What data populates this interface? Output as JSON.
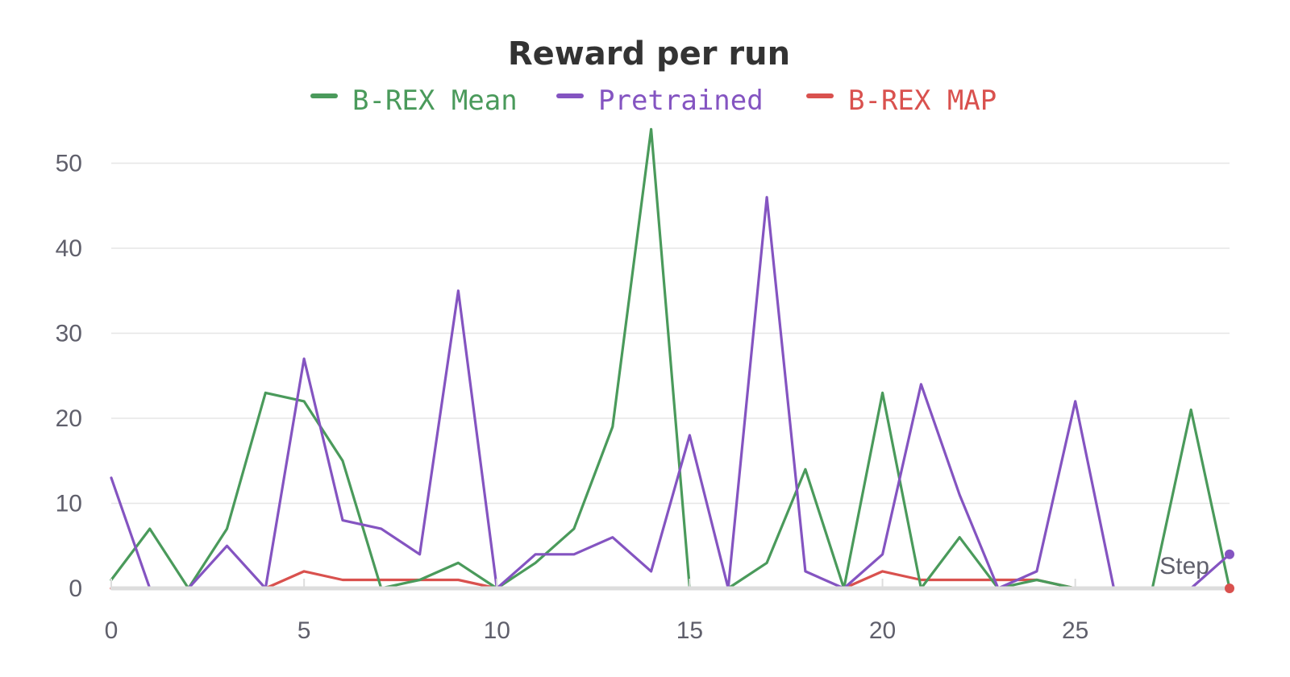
{
  "chart_data": {
    "type": "line",
    "title": "Reward per run",
    "xlabel": "Step",
    "ylabel": "",
    "xlim": [
      0,
      29
    ],
    "ylim": [
      0,
      55
    ],
    "x_ticks": [
      0,
      5,
      10,
      15,
      20,
      25
    ],
    "y_ticks": [
      0,
      10,
      20,
      30,
      40,
      50
    ],
    "grid": "horizontal",
    "legend_position": "top-center",
    "x": [
      0,
      1,
      2,
      3,
      4,
      5,
      6,
      7,
      8,
      9,
      10,
      11,
      12,
      13,
      14,
      15,
      16,
      17,
      18,
      19,
      20,
      21,
      22,
      23,
      24,
      25,
      26,
      27,
      28,
      29
    ],
    "series": [
      {
        "name": "B-REX Mean",
        "color": "#4a9a5b",
        "values": [
          1,
          7,
          0,
          7,
          23,
          22,
          15,
          0,
          1,
          3,
          0,
          3,
          7,
          19,
          54,
          0,
          0,
          3,
          14,
          0,
          23,
          0,
          6,
          0,
          1,
          0,
          0,
          0,
          21,
          0
        ]
      },
      {
        "name": "Pretrained",
        "color": "#8454c1",
        "values": [
          13,
          0,
          0,
          5,
          0,
          27,
          8,
          7,
          4,
          35,
          0,
          4,
          4,
          6,
          2,
          18,
          0,
          46,
          2,
          0,
          4,
          24,
          11,
          0,
          2,
          22,
          0,
          0,
          0,
          4
        ]
      },
      {
        "name": "B-REX MAP",
        "color": "#d9514e",
        "values": [
          0,
          0,
          0,
          0,
          0,
          2,
          1,
          1,
          1,
          1,
          0,
          0,
          0,
          0,
          0,
          0,
          0,
          0,
          0,
          0,
          2,
          1,
          1,
          1,
          1,
          0,
          0,
          0,
          0,
          0
        ]
      }
    ]
  }
}
